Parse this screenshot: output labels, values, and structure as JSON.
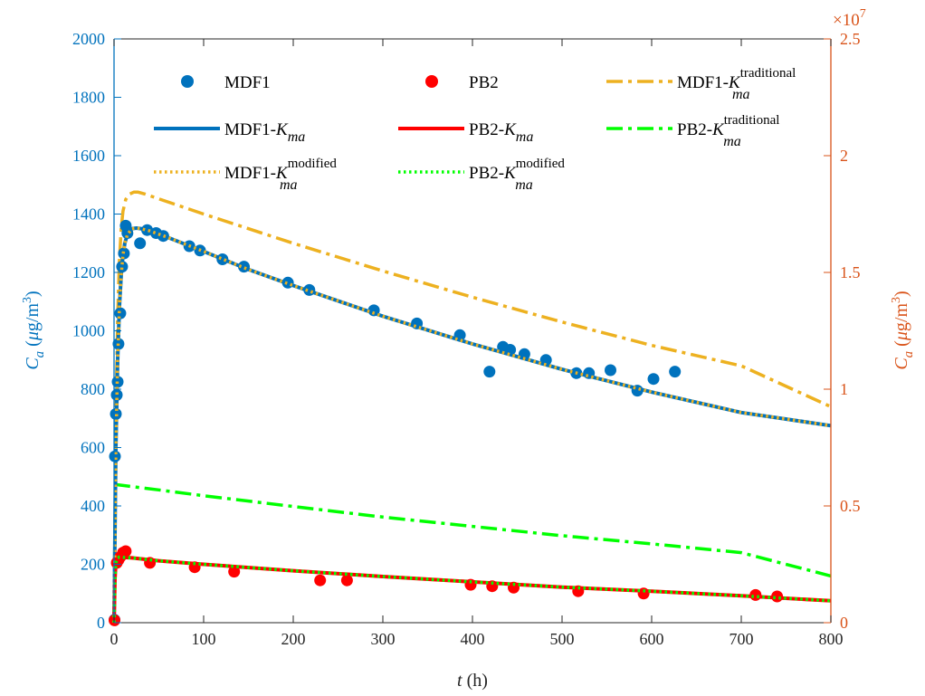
{
  "chart_data": {
    "type": "line",
    "xlabel": {
      "var": "t",
      "unit": " (h)"
    },
    "ylabel_left": {
      "var": "C",
      "sub": "a",
      "unit_pre": " (",
      "mu": "μ",
      "unit_mid": "g/m",
      "sup": "3",
      "unit_post": ")"
    },
    "ylabel_right": {
      "var": "C",
      "sub": "a",
      "unit_pre": " (",
      "mu": "μ",
      "unit_mid": "g/m",
      "sup": "3",
      "unit_post": ")"
    },
    "xlim": [
      0,
      800
    ],
    "ylim_left": [
      0,
      2000
    ],
    "ylim_right": [
      0,
      2.5
    ],
    "right_exponent": {
      "base": "×10",
      "power": "7"
    },
    "x_ticks": [
      "0",
      "100",
      "200",
      "300",
      "400",
      "500",
      "600",
      "700",
      "800"
    ],
    "y_left_ticks": [
      "0",
      "200",
      "400",
      "600",
      "800",
      "1000",
      "1200",
      "1400",
      "1600",
      "1800",
      "2000"
    ],
    "y_right_ticks": [
      "0",
      "0.5",
      "1",
      "1.5",
      "2",
      "2.5"
    ],
    "colors": {
      "left_axis": "#0072BD",
      "right_axis": "#D95319",
      "mdf1": "#0072BD",
      "pb2": "#FF0000",
      "traditional_mdf1": "#EDB120",
      "traditional_pb2": "#00FF00"
    },
    "legend": [
      {
        "base": "MDF1",
        "sub": "",
        "sup": "",
        "style": "marker-blue"
      },
      {
        "base": "PB2",
        "sub": "",
        "sup": "",
        "style": "marker-red"
      },
      {
        "base": "MDF1-K",
        "sub": "ma",
        "sup": "traditional",
        "style": "dashdot-orange"
      },
      {
        "base": "MDF1-K",
        "sub": "ma",
        "sup": "",
        "style": "solid-blue"
      },
      {
        "base": "PB2-K",
        "sub": "ma",
        "sup": "",
        "style": "solid-red"
      },
      {
        "base": "PB2-K",
        "sub": "ma",
        "sup": "traditional",
        "style": "dashdot-green"
      },
      {
        "base": "MDF1-K",
        "sub": "ma",
        "sup": "modified",
        "style": "dotted-orange"
      },
      {
        "base": "PB2-K",
        "sub": "ma",
        "sup": "modified",
        "style": "dotted-green"
      }
    ],
    "series": [
      {
        "name": "MDF1",
        "kind": "scatter",
        "x": [
          0.5,
          1,
          2,
          3,
          4,
          5,
          7,
          9,
          11,
          13,
          15,
          29,
          37,
          47,
          55,
          84,
          96,
          121,
          145,
          194,
          218,
          290,
          338,
          386,
          419,
          434,
          442,
          458,
          482,
          516,
          530,
          554,
          584,
          602,
          626
        ],
        "y": [
          10,
          570,
          715,
          780,
          825,
          955,
          1060,
          1220,
          1265,
          1360,
          1335,
          1300,
          1345,
          1335,
          1325,
          1290,
          1275,
          1245,
          1220,
          1165,
          1140,
          1070,
          1025,
          985,
          860,
          945,
          935,
          920,
          900,
          855,
          855,
          865,
          795,
          835,
          860
        ]
      },
      {
        "name": "PB2",
        "kind": "scatter",
        "x": [
          0.5,
          3,
          5,
          7,
          10,
          13,
          40,
          90,
          134,
          230,
          260,
          398,
          422,
          446,
          518,
          591,
          716,
          740
        ],
        "y": [
          8,
          205,
          215,
          225,
          240,
          245,
          205,
          190,
          175,
          145,
          145,
          130,
          125,
          120,
          108,
          100,
          95,
          90
        ]
      },
      {
        "name": "MDF1-Kma",
        "kind": "line",
        "x": [
          0,
          2,
          4,
          6,
          8,
          10,
          12,
          15,
          20,
          25,
          30,
          40,
          60,
          100,
          150,
          200,
          300,
          400,
          500,
          600,
          700,
          800
        ],
        "y": [
          0,
          600,
          900,
          1080,
          1190,
          1260,
          1300,
          1330,
          1350,
          1352,
          1350,
          1342,
          1320,
          1272,
          1210,
          1155,
          1050,
          955,
          868,
          790,
          720,
          675
        ]
      },
      {
        "name": "MDF1-Kma-modified",
        "kind": "line",
        "x": [
          0,
          2,
          4,
          6,
          8,
          10,
          12,
          15,
          20,
          25,
          30,
          40,
          60,
          100,
          150,
          200,
          300,
          400,
          500,
          600,
          700,
          800
        ],
        "y": [
          0,
          600,
          900,
          1080,
          1190,
          1260,
          1300,
          1330,
          1350,
          1352,
          1350,
          1342,
          1320,
          1272,
          1210,
          1155,
          1050,
          955,
          868,
          790,
          720,
          675
        ]
      },
      {
        "name": "MDF1-Kma-traditional",
        "kind": "line",
        "x": [
          0,
          2,
          4,
          6,
          8,
          10,
          13,
          17,
          22,
          27,
          35,
          50,
          100,
          200,
          300,
          400,
          500,
          600,
          700,
          800
        ],
        "y": [
          0,
          700,
          1050,
          1240,
          1350,
          1410,
          1450,
          1468,
          1475,
          1475,
          1468,
          1452,
          1400,
          1300,
          1205,
          1115,
          1030,
          950,
          880,
          740
        ]
      },
      {
        "name": "PB2-Kma",
        "kind": "line",
        "x": [
          0,
          1,
          2,
          4,
          6,
          10,
          20,
          50,
          100,
          200,
          300,
          400,
          500,
          600,
          700,
          800
        ],
        "y": [
          0,
          150,
          205,
          222,
          225,
          224,
          222,
          212,
          200,
          178,
          158,
          140,
          122,
          108,
          92,
          75
        ]
      },
      {
        "name": "PB2-Kma-modified",
        "kind": "line",
        "x": [
          0,
          1,
          2,
          4,
          6,
          10,
          20,
          50,
          100,
          200,
          300,
          400,
          500,
          600,
          700,
          800
        ],
        "y": [
          0,
          150,
          205,
          222,
          225,
          224,
          222,
          212,
          200,
          178,
          158,
          140,
          122,
          108,
          92,
          75
        ]
      },
      {
        "name": "PB2-Kma-traditional",
        "kind": "line",
        "x": [
          0,
          5,
          10,
          50,
          100,
          200,
          300,
          400,
          500,
          600,
          700,
          800
        ],
        "y": [
          475,
          472,
          470,
          455,
          435,
          398,
          362,
          330,
          298,
          270,
          240,
          160
        ]
      }
    ]
  }
}
